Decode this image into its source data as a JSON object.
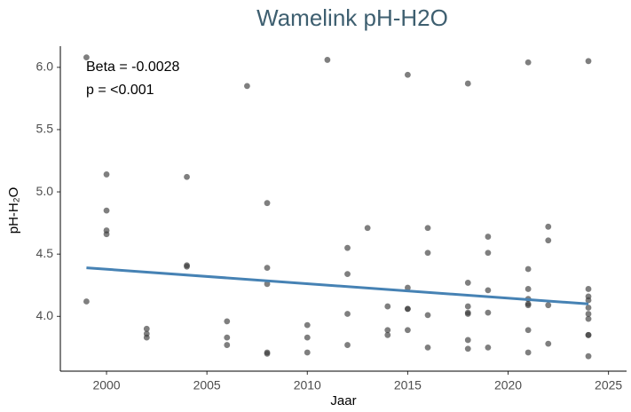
{
  "chart_data": {
    "type": "scatter",
    "title": "Wamelink pH-H2O",
    "xlabel": "Jaar",
    "ylabel": "pH-H₂O",
    "annotations": [
      "Beta = -0.0028",
      "p = <0.001"
    ],
    "series": [
      {
        "name": null,
        "color": "#3a3a3a",
        "x": [
          1999,
          1999,
          2000,
          2000,
          2000,
          2000,
          2002,
          2002,
          2002,
          2004,
          2004,
          2004,
          2006,
          2006,
          2006,
          2007,
          2008,
          2008,
          2008,
          2008,
          2008,
          2010,
          2010,
          2010,
          2011,
          2012,
          2012,
          2012,
          2012,
          2013,
          2014,
          2014,
          2014,
          2015,
          2015,
          2015,
          2015,
          2015,
          2016,
          2016,
          2016,
          2016,
          2018,
          2018,
          2018,
          2018,
          2018,
          2018,
          2018,
          2019,
          2019,
          2019,
          2019,
          2019,
          2021,
          2021,
          2021,
          2021,
          2021,
          2021,
          2021,
          2021,
          2022,
          2022,
          2022,
          2022,
          2024,
          2024,
          2024,
          2024,
          2024,
          2024,
          2024,
          2024,
          2024,
          2024
        ],
        "values": [
          6.08,
          4.12,
          5.14,
          4.85,
          4.69,
          4.66,
          3.9,
          3.86,
          3.83,
          5.12,
          4.41,
          4.4,
          3.96,
          3.83,
          3.77,
          5.85,
          4.91,
          4.39,
          4.26,
          3.71,
          3.7,
          3.93,
          3.83,
          3.71,
          6.06,
          4.55,
          4.34,
          4.02,
          3.77,
          4.71,
          4.08,
          3.89,
          3.85,
          5.94,
          4.23,
          4.06,
          4.06,
          3.89,
          4.71,
          4.51,
          4.01,
          3.75,
          5.87,
          4.27,
          4.08,
          4.03,
          4.02,
          3.81,
          3.74,
          4.64,
          4.51,
          4.21,
          4.03,
          3.75,
          6.04,
          4.38,
          4.22,
          4.14,
          4.1,
          4.09,
          3.89,
          3.71,
          4.72,
          4.61,
          4.09,
          3.78,
          6.05,
          4.22,
          4.16,
          4.13,
          4.07,
          4.02,
          3.98,
          3.85,
          3.85,
          3.68
        ]
      }
    ],
    "trend": {
      "x": [
        1999,
        2024
      ],
      "values": [
        4.39,
        4.1
      ],
      "color": "#4682b4"
    },
    "xlim": [
      1997.7,
      2025.9
    ],
    "xticks": [
      2000,
      2005,
      2010,
      2015,
      2020,
      2025
    ],
    "ylim": [
      3.56,
      6.17
    ],
    "yticks": [
      {
        "value": 4,
        "label": "4.0"
      },
      4.5,
      {
        "value": 5,
        "label": "5.0"
      },
      5.5,
      {
        "value": 6,
        "label": "6.0"
      }
    ],
    "grid": false
  }
}
